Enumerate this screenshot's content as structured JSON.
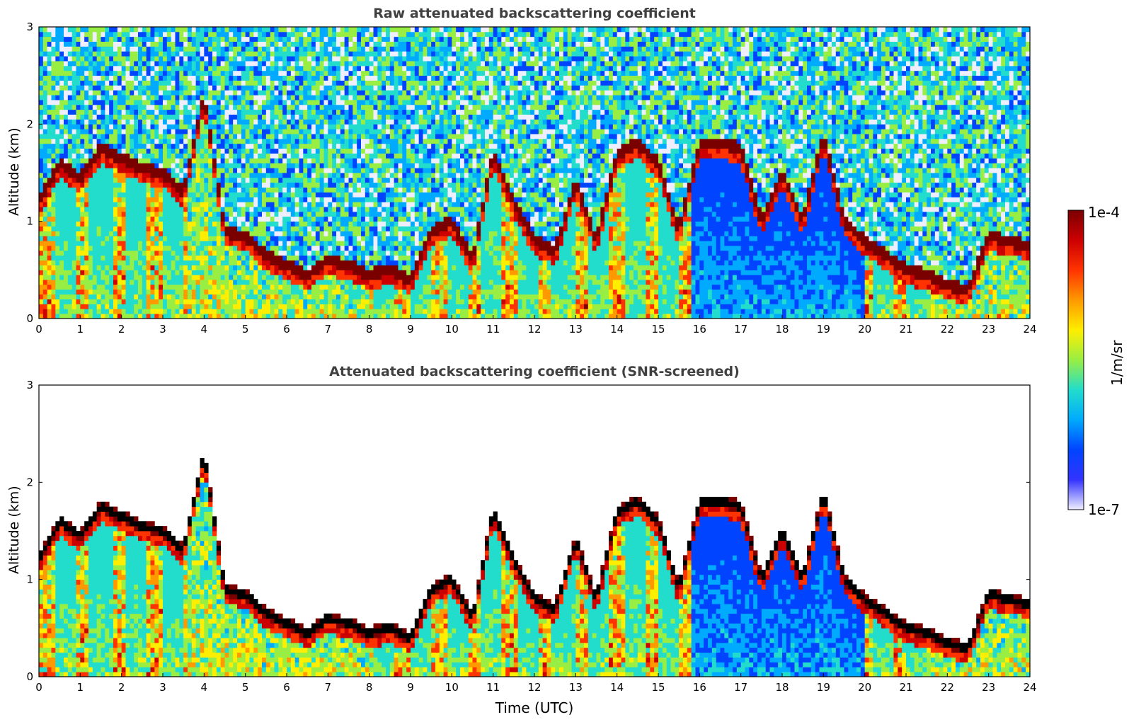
{
  "chart_data": [
    {
      "type": "heatmap",
      "title": "Raw attenuated backscattering coefficient",
      "xlabel": "",
      "ylabel": "Altitude (km)",
      "xlim": [
        0,
        24
      ],
      "ylim": [
        0,
        3
      ],
      "xticks": [
        "0",
        "1",
        "2",
        "3",
        "4",
        "5",
        "6",
        "7",
        "8",
        "9",
        "10",
        "11",
        "12",
        "13",
        "14",
        "15",
        "16",
        "17",
        "18",
        "19",
        "20",
        "21",
        "22",
        "23",
        "24"
      ],
      "yticks": [
        "0",
        "1",
        "2",
        "3"
      ],
      "screened": false,
      "cloud_layer": {
        "x": [
          0,
          0.5,
          1,
          1.5,
          2,
          2.5,
          3,
          3.5,
          4,
          4.5,
          5,
          5.5,
          6,
          6.5,
          7,
          7.5,
          8,
          8.5,
          9,
          9.5,
          10,
          10.5,
          11,
          11.5,
          12,
          12.5,
          13,
          13.5,
          14,
          14.5,
          15,
          15.5,
          16,
          16.5,
          17,
          17.5,
          18,
          18.5,
          19,
          19.5,
          20,
          20.5,
          21,
          21.5,
          22,
          22.5,
          23,
          23.5,
          24
        ],
        "altitude_km": [
          1.2,
          1.6,
          1.45,
          1.75,
          1.65,
          1.55,
          1.5,
          1.3,
          2.3,
          0.9,
          0.85,
          0.65,
          0.55,
          0.45,
          0.6,
          0.55,
          0.45,
          0.5,
          0.4,
          0.9,
          1.0,
          0.6,
          1.7,
          1.2,
          0.8,
          0.7,
          1.4,
          0.8,
          1.7,
          1.8,
          1.6,
          0.9,
          1.8,
          1.8,
          1.75,
          1.0,
          1.5,
          1.0,
          1.9,
          1.0,
          0.8,
          0.65,
          0.5,
          0.45,
          0.35,
          0.3,
          0.85,
          0.8,
          0.75
        ]
      }
    },
    {
      "type": "heatmap",
      "title": "Attenuated backscattering coefficient (SNR-screened)",
      "xlabel": "Time (UTC)",
      "ylabel": "Altitude (km)",
      "xlim": [
        0,
        24
      ],
      "ylim": [
        0,
        3
      ],
      "xticks": [
        "0",
        "1",
        "2",
        "3",
        "4",
        "5",
        "6",
        "7",
        "8",
        "9",
        "10",
        "11",
        "12",
        "13",
        "14",
        "15",
        "16",
        "17",
        "18",
        "19",
        "20",
        "21",
        "22",
        "23",
        "24"
      ],
      "yticks": [
        "0",
        "1",
        "2",
        "3"
      ],
      "screened": true
    }
  ],
  "colorbar": {
    "label": "1/m/sr",
    "max_label": "1e-4",
    "min_label": "1e-7",
    "colors": [
      "#eeeeff",
      "#3333ff",
      "#0044ff",
      "#00aaff",
      "#22ddcc",
      "#99ee44",
      "#ffee00",
      "#ff9900",
      "#ff3300",
      "#cc0000",
      "#7a0000"
    ]
  }
}
